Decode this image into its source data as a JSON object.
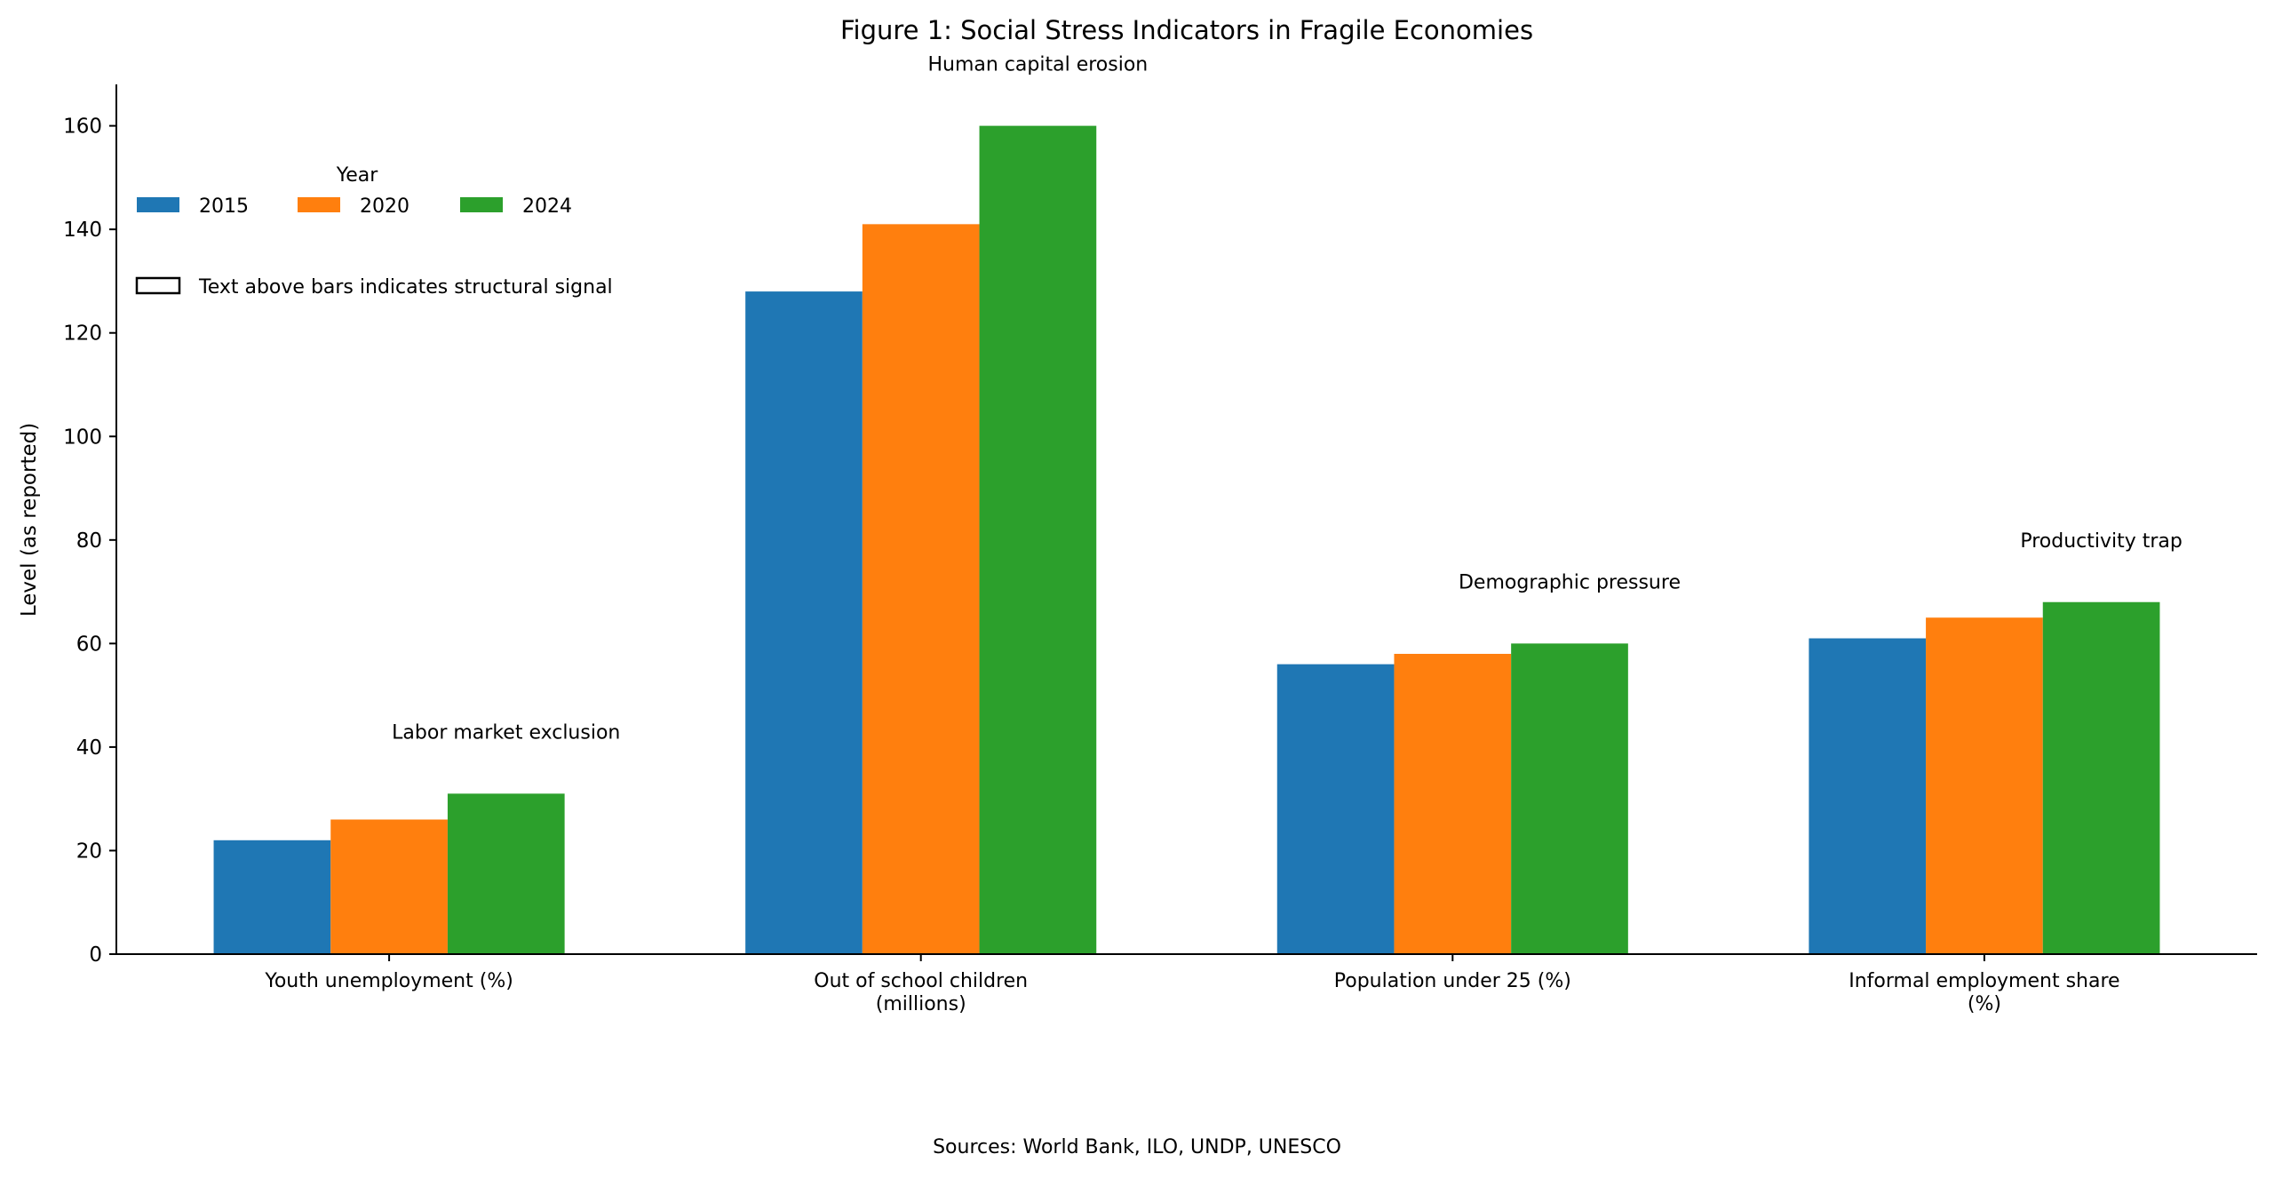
{
  "chart_data": {
    "type": "bar",
    "title": "Figure 1: Social Stress Indicators in Fragile Economies",
    "xlabel": "",
    "ylabel": "Level (as reported)",
    "categories": [
      "Youth unemployment (%)",
      "Out of school children\n(millions)",
      "Population under 25 (%)",
      "Informal employment share\n(%)"
    ],
    "series": [
      {
        "name": "2015",
        "color": "#1f77b4",
        "values": [
          22,
          128,
          56,
          61
        ]
      },
      {
        "name": "2020",
        "color": "#ff7f0e",
        "values": [
          26,
          141,
          58,
          65
        ]
      },
      {
        "name": "2024",
        "color": "#2ca02c",
        "values": [
          31,
          160,
          60,
          68
        ]
      }
    ],
    "annotations": [
      "Labor market exclusion",
      "Human capital erosion",
      "Demographic pressure",
      "Productivity trap"
    ],
    "ylim": [
      0,
      168
    ],
    "yticks": [
      0,
      20,
      40,
      60,
      80,
      100,
      120,
      140,
      160
    ],
    "grid": false,
    "legend": {
      "title": "Year",
      "placement": "upper-left",
      "note": "Text above bars indicates structural signal"
    },
    "footer": "Sources: World Bank, ILO, UNDP, UNESCO"
  }
}
